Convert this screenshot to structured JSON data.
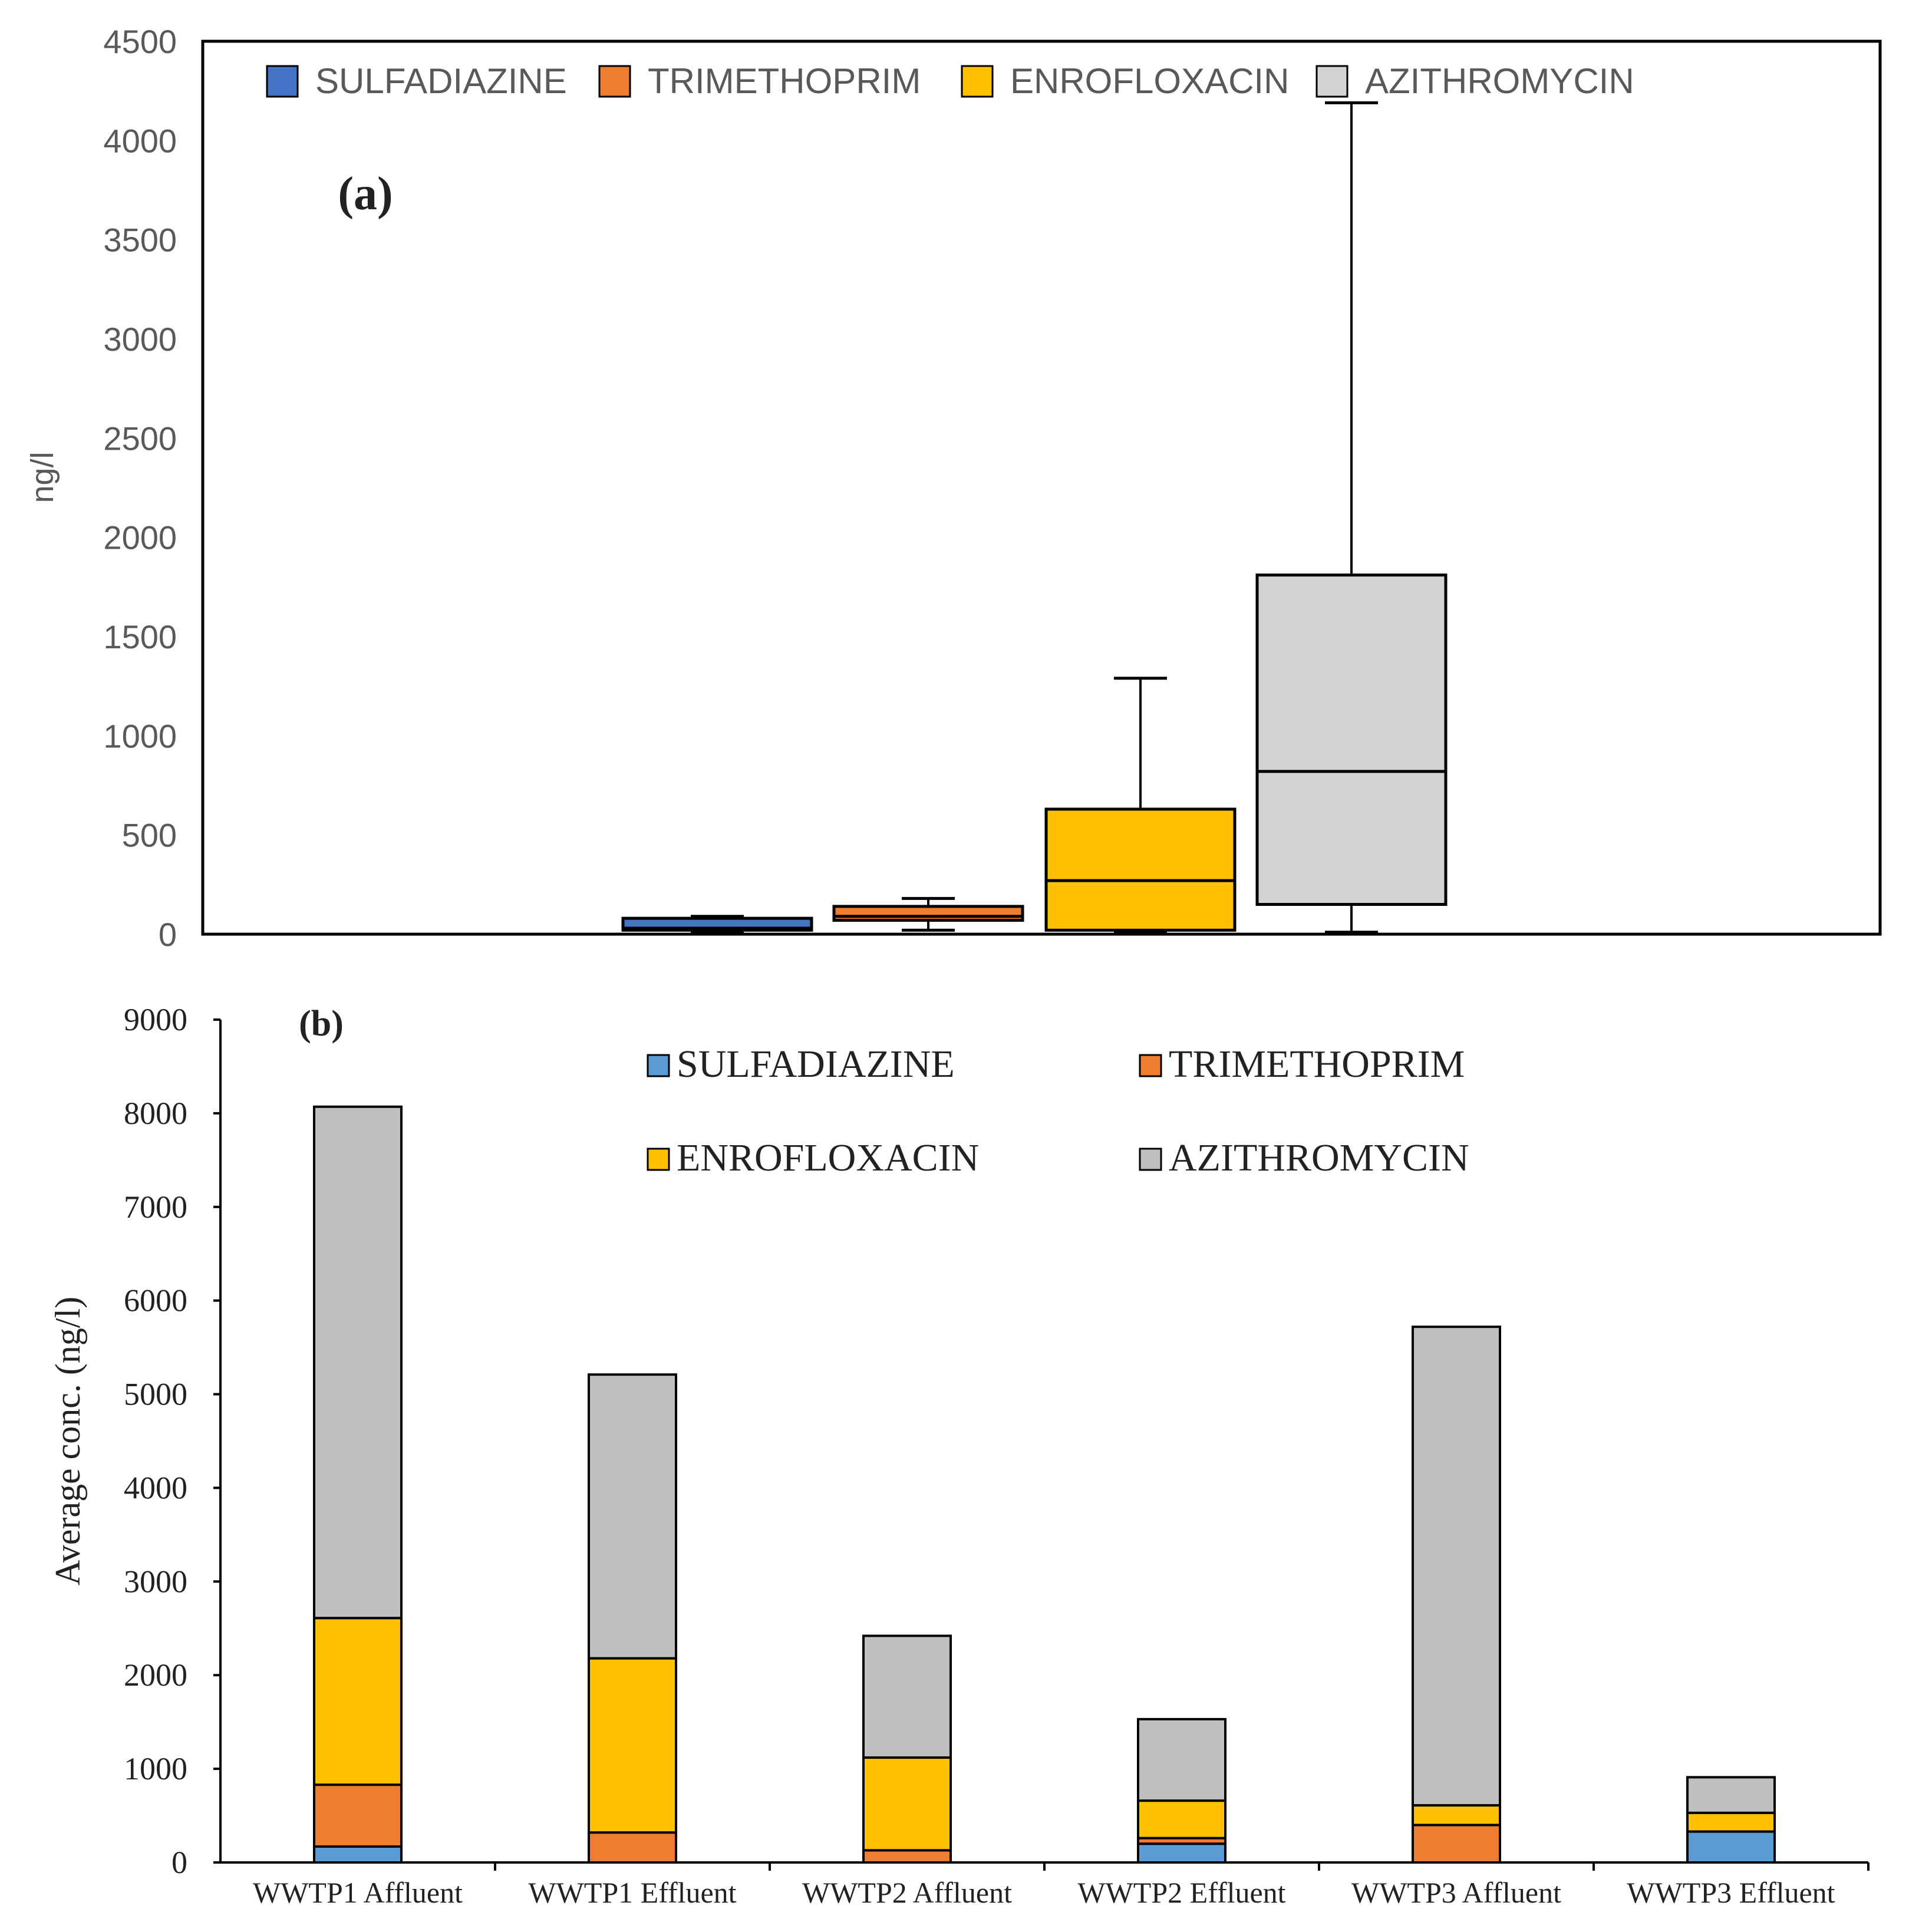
{
  "chart_data": [
    {
      "type": "box",
      "panel_label": "(a)",
      "ylabel": "ng/l",
      "ylim": [
        0,
        4500
      ],
      "yticks": [
        0,
        500,
        1000,
        1500,
        2000,
        2500,
        3000,
        3500,
        4000,
        4500
      ],
      "legend": [
        "SULFADIAZINE",
        "TRIMETHOPRIM",
        "ENROFLOXACIN",
        "AZITHROMYCIN"
      ],
      "series": [
        {
          "name": "SULFADIAZINE",
          "color": "#4472C4",
          "min": 10,
          "q1": 20,
          "median": 30,
          "q3": 80,
          "max": 90
        },
        {
          "name": "TRIMETHOPRIM",
          "color": "#ED7D31",
          "min": 20,
          "q1": 70,
          "median": 90,
          "q3": 140,
          "max": 180
        },
        {
          "name": "ENROFLOXACIN",
          "color": "#FFC000",
          "min": 10,
          "q1": 20,
          "median": 270,
          "q3": 630,
          "max": 1290
        },
        {
          "name": "AZITHROMYCIN",
          "color": "#D3D3D3",
          "min": 10,
          "q1": 150,
          "median": 820,
          "q3": 1810,
          "max": 4190
        }
      ]
    },
    {
      "type": "stacked-bar",
      "panel_label": "(b)",
      "ylabel": "Average conc. (ng/l)",
      "ylim": [
        0,
        9000
      ],
      "yticks": [
        0,
        1000,
        2000,
        3000,
        4000,
        5000,
        6000,
        7000,
        8000,
        9000
      ],
      "categories": [
        "WWTP1 Affluent",
        "WWTP1 Effluent",
        "WWTP2  Affluent",
        "WWTP2 Effluent",
        "WWTP3 Affluent",
        "WWTP3 Effluent"
      ],
      "legend": [
        "SULFADIAZINE",
        "TRIMETHOPRIM",
        "ENROFLOXACIN",
        "AZITHROMYCIN"
      ],
      "series": [
        {
          "name": "SULFADIAZINE",
          "color": "#5B9BD5",
          "values": [
            170,
            0,
            0,
            200,
            0,
            330
          ]
        },
        {
          "name": "TRIMETHOPRIM",
          "color": "#ED7D31",
          "values": [
            660,
            320,
            130,
            60,
            400,
            0
          ]
        },
        {
          "name": "ENROFLOXACIN",
          "color": "#FFC000",
          "values": [
            1780,
            1860,
            990,
            400,
            210,
            200
          ]
        },
        {
          "name": "AZITHROMYCIN",
          "color": "#BFBFBF",
          "values": [
            5460,
            3030,
            1300,
            870,
            5110,
            380
          ]
        }
      ]
    }
  ]
}
